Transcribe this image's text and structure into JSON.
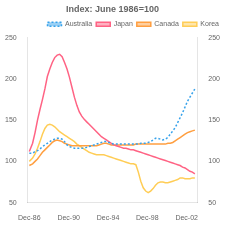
{
  "chart_data": {
    "type": "line",
    "title": "Index: June 1986=100",
    "x": [
      1986.917,
      1987.25,
      1987.5,
      1987.75,
      1988.0,
      1988.25,
      1988.5,
      1988.75,
      1989.0,
      1989.25,
      1989.5,
      1989.75,
      1990.0,
      1990.25,
      1990.5,
      1990.75,
      1991.0,
      1991.25,
      1991.5,
      1991.75,
      1992.0,
      1992.25,
      1992.5,
      1992.75,
      1993.0,
      1993.25,
      1993.5,
      1993.75,
      1994.0,
      1994.25,
      1994.5,
      1994.75,
      1995.0,
      1995.25,
      1995.5,
      1995.75,
      1996.0,
      1996.25,
      1996.5,
      1996.75,
      1997.0,
      1997.25,
      1997.5,
      1997.75,
      1998.0,
      1998.25,
      1998.5,
      1998.75,
      1999.0,
      1999.25,
      1999.5,
      1999.75,
      2000.0,
      2000.25,
      2000.5,
      2000.75,
      2001.0,
      2001.25,
      2001.5,
      2001.75,
      2002.0,
      2002.25,
      2002.5,
      2002.75,
      2003.0,
      2003.25,
      2003.5,
      2003.75
    ],
    "xlim": [
      1986.75,
      2004.0
    ],
    "xticks": [
      {
        "value": 1986.917,
        "label": "Dec-86"
      },
      {
        "value": 1990.917,
        "label": "Dec-90"
      },
      {
        "value": 1994.917,
        "label": "Dec-94"
      },
      {
        "value": 1998.917,
        "label": "Dec-98"
      },
      {
        "value": 2002.917,
        "label": "Dec-02"
      }
    ],
    "ylim": [
      50,
      250
    ],
    "yticks": [
      50,
      100,
      150,
      200,
      250
    ],
    "y2lim": [
      50,
      250
    ],
    "y2ticks": [
      50,
      100,
      150,
      200,
      250
    ],
    "grid": false,
    "legend": "upper right",
    "series": [
      {
        "name": "Australia",
        "line_style": "dotted",
        "values": [
          110,
          110,
          112,
          113,
          115,
          118,
          120,
          122,
          124,
          126,
          127,
          128,
          128,
          127,
          124,
          120,
          118,
          117,
          116,
          116,
          116,
          116,
          116,
          117,
          118,
          119,
          120,
          121,
          122,
          123,
          124,
          124,
          123,
          122,
          121,
          121,
          121,
          121,
          121,
          121,
          121,
          121,
          121,
          121,
          121,
          122,
          122,
          122,
          123,
          124,
          126,
          128,
          128,
          127,
          126,
          127,
          129,
          133,
          137,
          141,
          147,
          153,
          159,
          166,
          173,
          178,
          183,
          188
        ]
      },
      {
        "name": "Japan",
        "line_style": "solid",
        "values": [
          112,
          122,
          135,
          150,
          163,
          175,
          188,
          203,
          212,
          220,
          226,
          229,
          230,
          227,
          220,
          212,
          202,
          190,
          178,
          168,
          160,
          155,
          151,
          148,
          145,
          142,
          139,
          136,
          133,
          130,
          128,
          126,
          124,
          122,
          120,
          119,
          118,
          117,
          116,
          116,
          115,
          114,
          114,
          113,
          112,
          111,
          110,
          109,
          108,
          107,
          106,
          105,
          104,
          103,
          102,
          101,
          100,
          99,
          98,
          97,
          96,
          95,
          93,
          92,
          90,
          88,
          87,
          85
        ]
      },
      {
        "name": "Canada",
        "line_style": "solid",
        "values": [
          95,
          97,
          100,
          103,
          107,
          111,
          114,
          117,
          120,
          123,
          125,
          126,
          125,
          124,
          122,
          121,
          120,
          119,
          119,
          119,
          119,
          119,
          119,
          119,
          119,
          119,
          119,
          119,
          120,
          121,
          122,
          122,
          121,
          120,
          120,
          120,
          120,
          120,
          120,
          120,
          120,
          120,
          120,
          121,
          121,
          121,
          121,
          121,
          121,
          121,
          121,
          121,
          121,
          121,
          121,
          121,
          122,
          122,
          123,
          125,
          127,
          129,
          131,
          133,
          135,
          136,
          137,
          138
        ]
      },
      {
        "name": "Korea",
        "line_style": "solid",
        "values": [
          100,
          104,
          109,
          116,
          124,
          133,
          140,
          144,
          145,
          144,
          142,
          139,
          136,
          134,
          132,
          130,
          128,
          126,
          124,
          121,
          119,
          117,
          115,
          113,
          111,
          110,
          109,
          108,
          108,
          108,
          108,
          107,
          106,
          105,
          104,
          103,
          102,
          101,
          100,
          99,
          98,
          97,
          97,
          96,
          87,
          76,
          68,
          64,
          62,
          64,
          67,
          71,
          74,
          75,
          75,
          74,
          74,
          75,
          76,
          77,
          78,
          80,
          80,
          79,
          79,
          79,
          80,
          80
        ]
      }
    ]
  }
}
